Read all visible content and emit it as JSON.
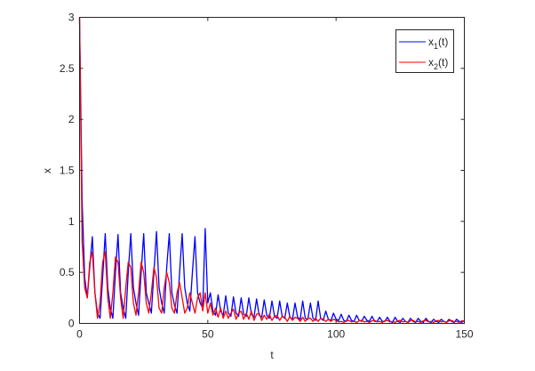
{
  "chart_data": {
    "type": "line",
    "title": "",
    "xlabel": "t",
    "ylabel": "x",
    "xlim": [
      0,
      150
    ],
    "ylim": [
      0,
      3
    ],
    "xticks": [
      0,
      50,
      100,
      150
    ],
    "yticks": [
      0,
      0.5,
      1,
      1.5,
      2,
      2.5,
      3
    ],
    "xtick_labels": [
      "0",
      "50",
      "100",
      "150"
    ],
    "ytick_labels": [
      "0",
      "0.5",
      "1",
      "1.5",
      "2",
      "2.5",
      "3"
    ],
    "grid": false,
    "legend_position": "top-right",
    "x_start": 0,
    "x_step": 1,
    "series": [
      {
        "name": "x1(t)",
        "legend_base": "x",
        "legend_sub": "1",
        "legend_suffix": "(t)",
        "color": "#0000ff",
        "values": [
          3,
          1.2,
          0.45,
          0.25,
          0.55,
          0.85,
          0.3,
          0.1,
          0.05,
          0.45,
          0.88,
          0.35,
          0.15,
          0.05,
          0.5,
          0.87,
          0.3,
          0.15,
          0.05,
          0.5,
          0.88,
          0.35,
          0.2,
          0.08,
          0.5,
          0.88,
          0.3,
          0.2,
          0.1,
          0.5,
          0.9,
          0.35,
          0.2,
          0.1,
          0.55,
          0.88,
          0.3,
          0.18,
          0.1,
          0.5,
          0.88,
          0.35,
          0.2,
          0.12,
          0.5,
          0.85,
          0.3,
          0.2,
          0.15,
          0.93,
          0.2,
          0.3,
          0.12,
          0.08,
          0.28,
          0.12,
          0.08,
          0.27,
          0.1,
          0.07,
          0.26,
          0.1,
          0.07,
          0.25,
          0.09,
          0.07,
          0.25,
          0.09,
          0.06,
          0.24,
          0.08,
          0.06,
          0.23,
          0.08,
          0.05,
          0.22,
          0.07,
          0.05,
          0.22,
          0.07,
          0.05,
          0.2,
          0.06,
          0.04,
          0.2,
          0.06,
          0.04,
          0.22,
          0.05,
          0.04,
          0.2,
          0.05,
          0.03,
          0.22,
          0.05,
          0.03,
          0.12,
          0.04,
          0.03,
          0.1,
          0.04,
          0.03,
          0.09,
          0.03,
          0.02,
          0.08,
          0.03,
          0.02,
          0.08,
          0.03,
          0.02,
          0.07,
          0.03,
          0.02,
          0.07,
          0.02,
          0.02,
          0.06,
          0.02,
          0.02,
          0.06,
          0.02,
          0.01,
          0.06,
          0.02,
          0.01,
          0.05,
          0.02,
          0.01,
          0.05,
          0.02,
          0.01,
          0.05,
          0.02,
          0.01,
          0.05,
          0.02,
          0.01,
          0.04,
          0.02,
          0.01,
          0.04,
          0.02,
          0.01,
          0.04,
          0.02,
          0.01,
          0.04,
          0.02,
          0.01,
          0.03
        ]
      },
      {
        "name": "x2(t)",
        "legend_base": "x",
        "legend_sub": "2",
        "legend_suffix": "(t)",
        "color": "#ff0000",
        "values": [
          3,
          0.8,
          0.35,
          0.25,
          0.6,
          0.7,
          0.3,
          0.05,
          0.2,
          0.6,
          0.7,
          0.25,
          0.05,
          0.3,
          0.65,
          0.6,
          0.25,
          0.05,
          0.35,
          0.6,
          0.55,
          0.2,
          0.08,
          0.3,
          0.6,
          0.5,
          0.2,
          0.1,
          0.3,
          0.55,
          0.45,
          0.15,
          0.1,
          0.35,
          0.5,
          0.4,
          0.15,
          0.1,
          0.3,
          0.4,
          0.25,
          0.1,
          0.15,
          0.3,
          0.2,
          0.1,
          0.25,
          0.3,
          0.12,
          0.3,
          0.1,
          0.2,
          0.08,
          0.15,
          0.06,
          0.15,
          0.05,
          0.12,
          0.05,
          0.1,
          0.14,
          0.04,
          0.1,
          0.12,
          0.04,
          0.1,
          0.04,
          0.12,
          0.03,
          0.09,
          0.1,
          0.03,
          0.08,
          0.04,
          0.09,
          0.03,
          0.07,
          0.08,
          0.03,
          0.07,
          0.06,
          0.02,
          0.07,
          0.03,
          0.06,
          0.05,
          0.02,
          0.06,
          0.02,
          0.05,
          0.05,
          0.02,
          0.05,
          0.02,
          0.05,
          0.04,
          0.02,
          0.04,
          0.02,
          0.04,
          0.03,
          0.015,
          0.02,
          0.01,
          0.025,
          0.03,
          0.015,
          0.02,
          0.01,
          0.025,
          0.03,
          0.015,
          0.02,
          0.01,
          0.025,
          0.03,
          0.015,
          0.02,
          0.01,
          0.025,
          0.03,
          0.015,
          0.02,
          0.01,
          0.025,
          0.03,
          0.015,
          0.02,
          0.01,
          0.025,
          0.03,
          0.015,
          0.02,
          0.01,
          0.025,
          0.03,
          0.015,
          0.02,
          0.01,
          0.025,
          0.03,
          0.015,
          0.02,
          0.01,
          0.025,
          0.03,
          0.015,
          0.02,
          0.01,
          0.025,
          0.02
        ]
      }
    ]
  }
}
